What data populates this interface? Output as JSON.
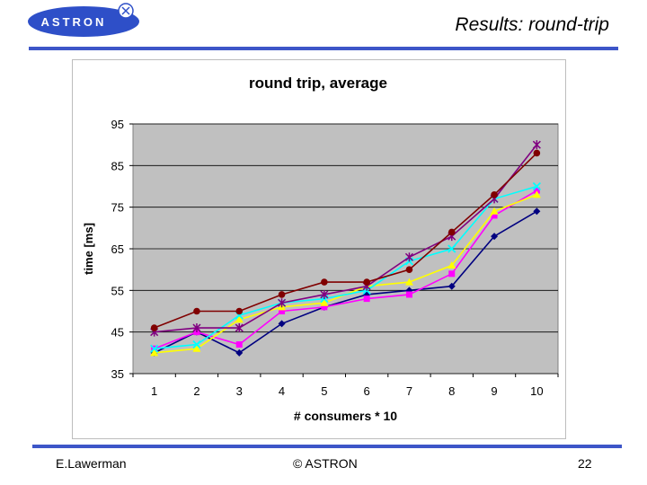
{
  "header": {
    "logo_text": "ASTRON",
    "title": "Results: round-trip"
  },
  "footer": {
    "author": "E.Lawerman",
    "copyright": "© ASTRON",
    "page_number": "22"
  },
  "colors": {
    "accent_rule": "#3d56c8",
    "plot_background": "#c0c0c0"
  },
  "chart_data": {
    "type": "line",
    "title": "round trip, average",
    "xlabel": "# consumers * 10",
    "ylabel": "time [ms]",
    "categories": [
      "1",
      "2",
      "3",
      "4",
      "5",
      "6",
      "7",
      "8",
      "9",
      "10"
    ],
    "ylim": [
      35,
      95
    ],
    "yticks": [
      35,
      45,
      55,
      65,
      75,
      85,
      95
    ],
    "grid": "horizontal",
    "legend": "none",
    "series": [
      {
        "color": "#000080",
        "marker": "diamond",
        "values": [
          40,
          45,
          40,
          47,
          51,
          54,
          55,
          56,
          68,
          74
        ]
      },
      {
        "color": "#ff00ff",
        "marker": "square",
        "values": [
          41,
          45,
          42,
          50,
          51,
          53,
          54,
          59,
          73,
          79
        ]
      },
      {
        "color": "#ffff00",
        "marker": "triangle",
        "values": [
          40,
          41,
          48,
          51,
          52,
          56,
          57,
          61,
          74,
          78
        ]
      },
      {
        "color": "#00ffff",
        "marker": "x",
        "values": [
          41,
          42,
          49,
          52,
          53,
          55,
          62,
          65,
          77,
          80
        ]
      },
      {
        "color": "#800080",
        "marker": "star",
        "values": [
          45,
          46,
          46,
          52,
          54,
          56,
          63,
          68,
          77,
          90
        ]
      },
      {
        "color": "#800000",
        "marker": "circle",
        "values": [
          46,
          50,
          50,
          54,
          57,
          57,
          60,
          69,
          78,
          88
        ]
      }
    ]
  }
}
